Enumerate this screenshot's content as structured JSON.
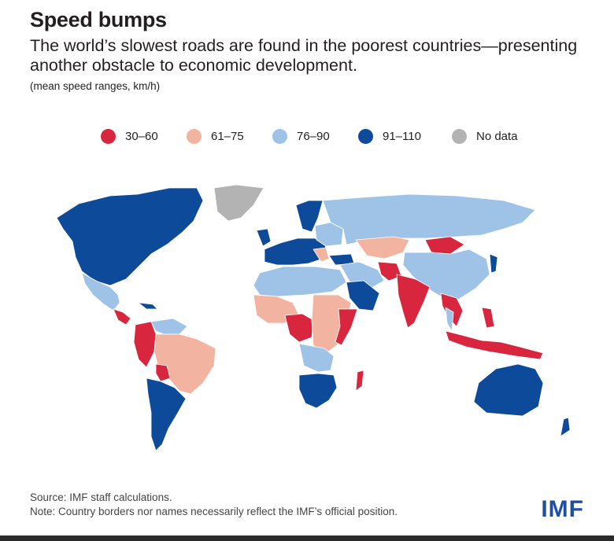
{
  "header": {
    "title": "Speed bumps",
    "subtitle": "The world’s slowest roads are found in the poorest countries—presenting another obstacle to economic development.",
    "unit_note": "(mean speed ranges, km/h)"
  },
  "legend": [
    {
      "label": "30–60",
      "color": "#d7263d"
    },
    {
      "label": "61–75",
      "color": "#f2b3a1"
    },
    {
      "label": "76–90",
      "color": "#9fc3e7"
    },
    {
      "label": "91–110",
      "color": "#0d4a9a"
    },
    {
      "label": "No data",
      "color": "#b3b3b3"
    }
  ],
  "footer": {
    "source": "Source: IMF staff calculations.",
    "note": "Note: Country borders nor names necessarily reflect the IMF’s official position.",
    "logo": "IMF"
  }
}
